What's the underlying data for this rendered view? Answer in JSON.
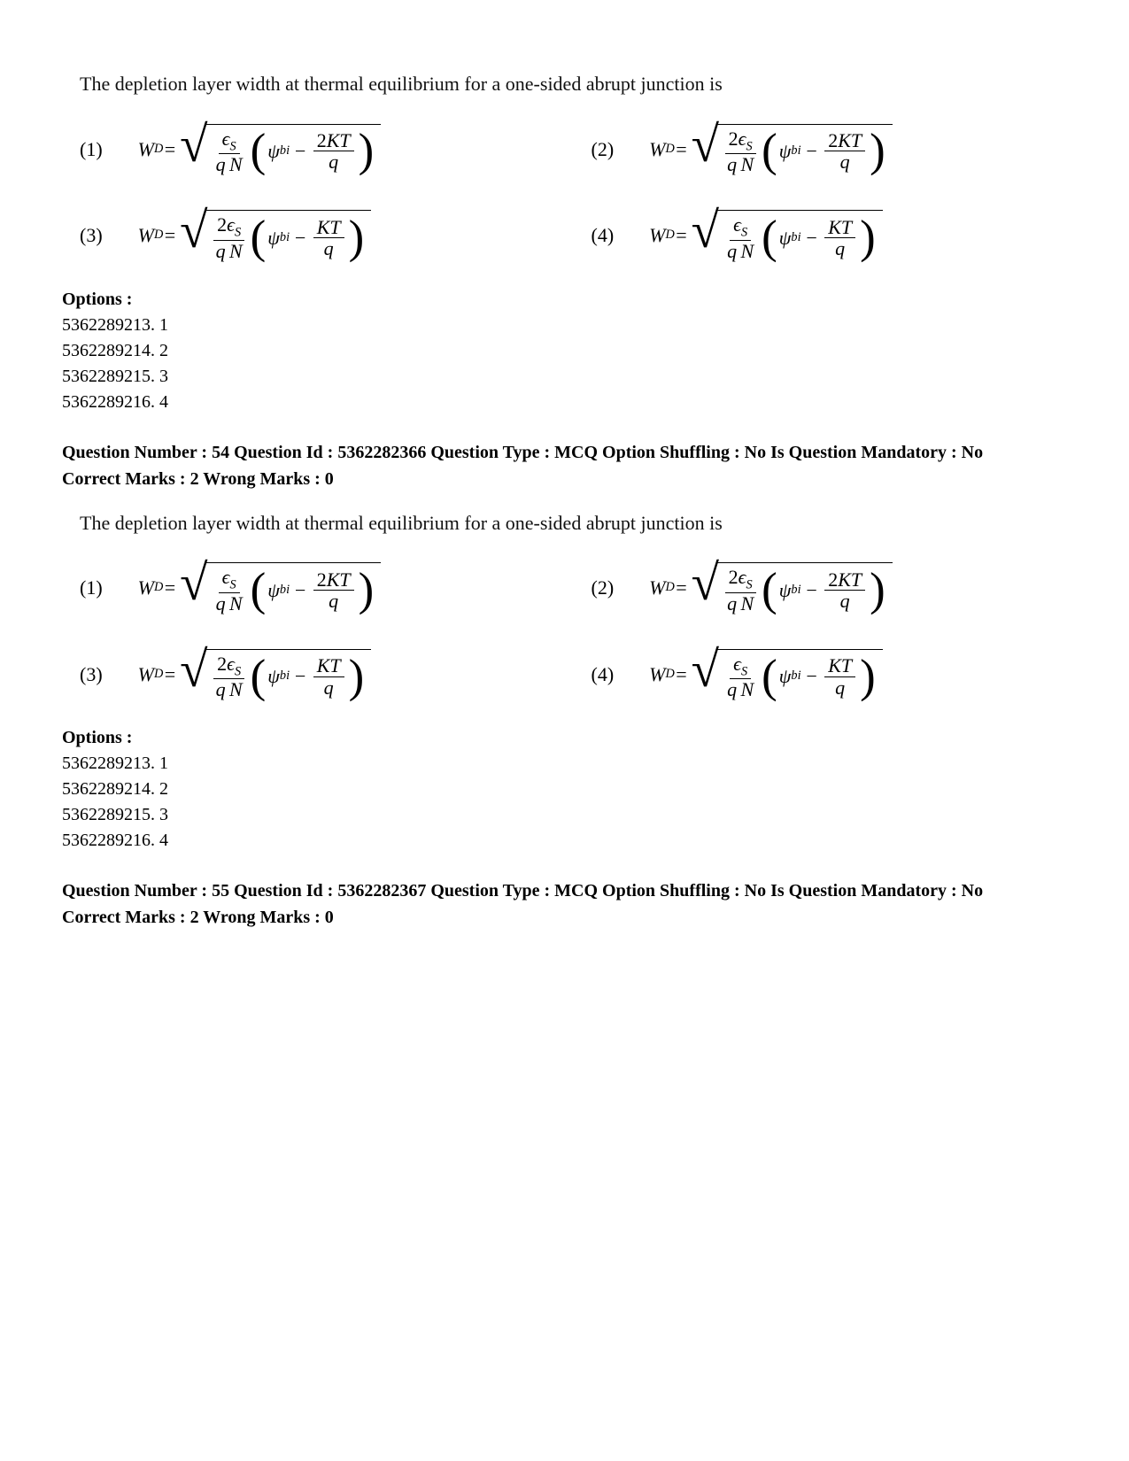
{
  "q1": {
    "stem": "The depletion layer width at thermal equilibrium for a one-sided abrupt junction is",
    "formulas": [
      {
        "num": "(1)",
        "coef": "",
        "ktcoef": "2"
      },
      {
        "num": "(2)",
        "coef": "2",
        "ktcoef": "2"
      },
      {
        "num": "(3)",
        "coef": "2",
        "ktcoef": ""
      },
      {
        "num": "(4)",
        "coef": "",
        "ktcoef": ""
      }
    ],
    "options_label": "Options :",
    "options": [
      "5362289213. 1",
      "5362289214. 2",
      "5362289215. 3",
      "5362289216. 4"
    ]
  },
  "meta54": {
    "line1": "Question Number : 54 Question Id : 5362282366 Question Type : MCQ Option Shuffling : No Is Question Mandatory : No",
    "line2": "Correct Marks : 2 Wrong Marks : 0"
  },
  "q2": {
    "stem": "The depletion layer width at thermal equilibrium for a one-sided abrupt junction is",
    "formulas": [
      {
        "num": "(1)",
        "coef": "",
        "ktcoef": "2"
      },
      {
        "num": "(2)",
        "coef": "2",
        "ktcoef": "2"
      },
      {
        "num": "(3)",
        "coef": "2",
        "ktcoef": ""
      },
      {
        "num": "(4)",
        "coef": "",
        "ktcoef": ""
      }
    ],
    "options_label": "Options :",
    "options": [
      "5362289213. 1",
      "5362289214. 2",
      "5362289215. 3",
      "5362289216. 4"
    ]
  },
  "meta55": {
    "line1": "Question Number : 55 Question Id : 5362282367 Question Type : MCQ Option Shuffling : No Is Question Mandatory : No",
    "line2": "Correct Marks : 2 Wrong Marks : 0"
  },
  "sym": {
    "WD_var": "W",
    "WD_sub": "D",
    "eq": "=",
    "eps": "ϵ",
    "S": "S",
    "q": "q",
    "N": "N",
    "psi": "ψ",
    "bi": "bi",
    "minus": "−",
    "K": "K",
    "T": "T"
  }
}
